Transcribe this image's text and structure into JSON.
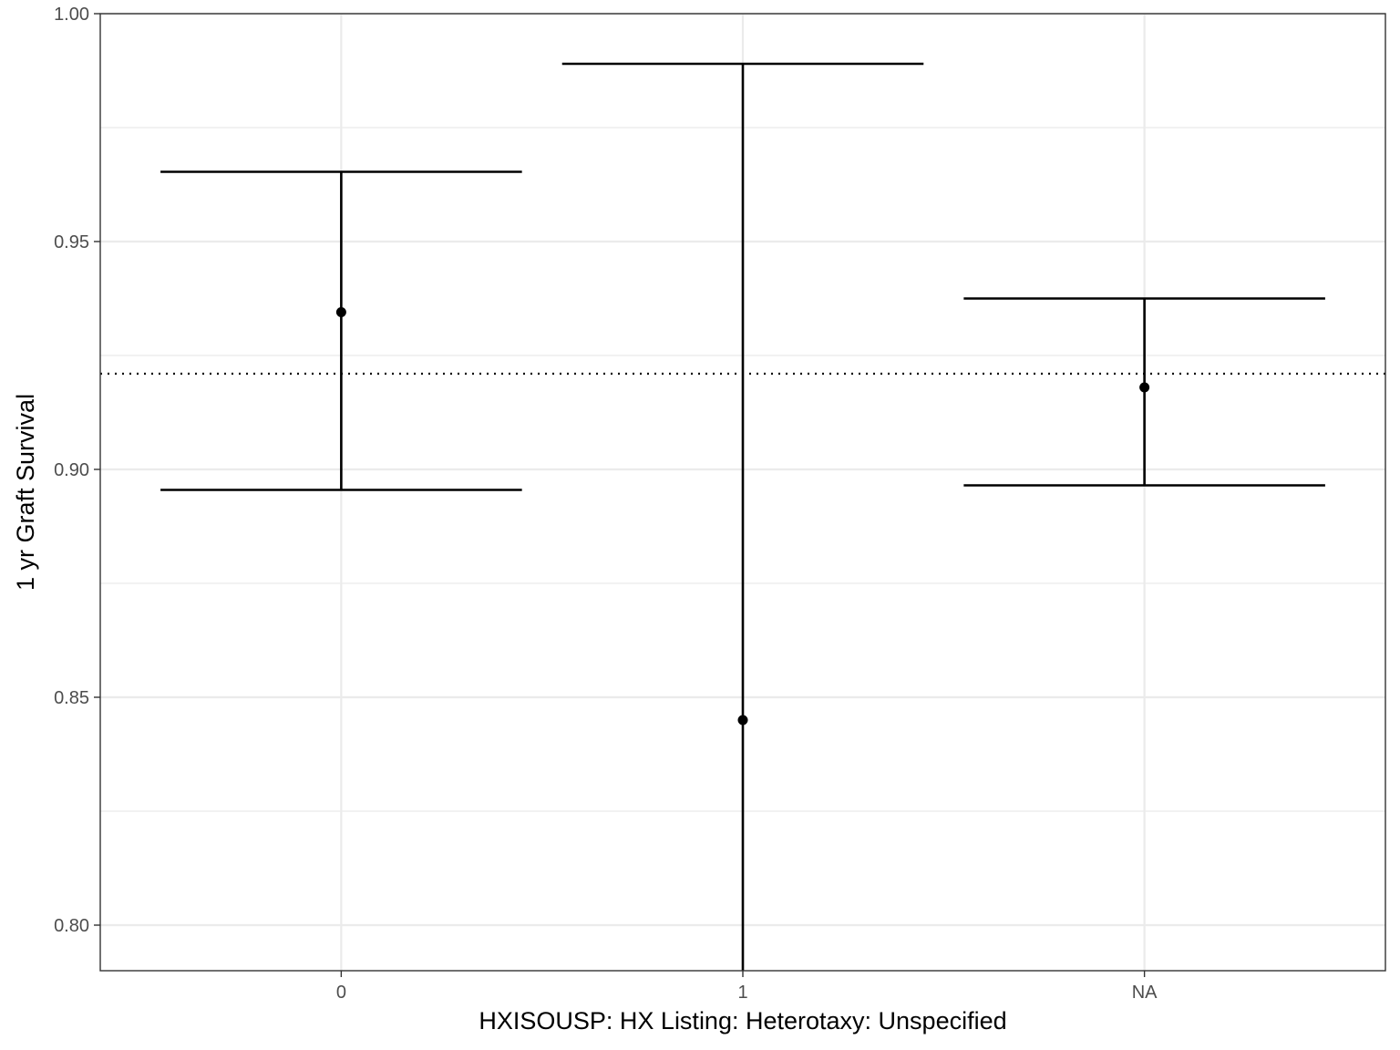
{
  "chart_data": {
    "type": "errorbar",
    "xlabel": "HXISOUSP: HX Listing: Heterotaxy: Unspecified",
    "ylabel": "1 yr Graft Survival",
    "categories": [
      "0",
      "1",
      "NA"
    ],
    "estimate": [
      0.9345,
      0.845,
      0.918
    ],
    "lower": [
      0.8955,
      0.79,
      0.8965
    ],
    "upper": [
      0.9653,
      0.989,
      0.9375
    ],
    "reference_line": 0.921,
    "reference_line_style": "dotted",
    "ylim": [
      0.79,
      1.0
    ],
    "yticks": [
      0.8,
      0.85,
      0.9,
      0.95,
      1.0
    ],
    "ytick_labels": [
      "0.80",
      "0.85",
      "0.90",
      "0.95",
      "1.00"
    ],
    "grid": true,
    "colors": {
      "marks": "#000000",
      "grid": "#ebebeb",
      "panel_border": "#333333"
    }
  }
}
